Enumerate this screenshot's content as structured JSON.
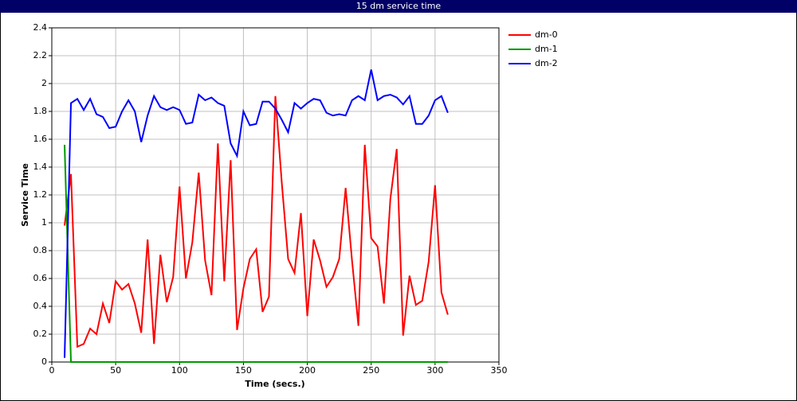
{
  "chart_data": {
    "type": "line",
    "title": "15 dm service time",
    "x_label": "Time (secs.)",
    "y_label": "Service Time",
    "x": [
      10,
      15,
      20,
      25,
      30,
      35,
      40,
      45,
      50,
      55,
      60,
      65,
      70,
      75,
      80,
      85,
      90,
      95,
      100,
      105,
      110,
      115,
      120,
      125,
      130,
      135,
      140,
      145,
      150,
      155,
      160,
      165,
      170,
      175,
      180,
      185,
      190,
      195,
      200,
      205,
      210,
      215,
      220,
      225,
      230,
      235,
      240,
      245,
      250,
      255,
      260,
      265,
      270,
      275,
      280,
      285,
      290,
      295,
      300,
      305,
      310
    ],
    "series": [
      {
        "name": "dm-0",
        "color": "#ff0000",
        "values": [
          0.98,
          1.35,
          0.11,
          0.13,
          0.24,
          0.2,
          0.42,
          0.28,
          0.58,
          0.52,
          0.56,
          0.42,
          0.21,
          0.88,
          0.13,
          0.77,
          0.43,
          0.61,
          1.26,
          0.6,
          0.86,
          1.36,
          0.73,
          0.48,
          1.57,
          0.58,
          1.45,
          0.23,
          0.53,
          0.74,
          0.81,
          0.36,
          0.47,
          1.91,
          1.29,
          0.74,
          0.64,
          1.07,
          0.33,
          0.88,
          0.73,
          0.54,
          0.61,
          0.74,
          1.25,
          0.73,
          0.26,
          1.56,
          0.89,
          0.83,
          0.42,
          1.17,
          1.53,
          0.19,
          0.62,
          0.41,
          0.44,
          0.72,
          1.27,
          0.5,
          0.34
        ]
      },
      {
        "name": "dm-1",
        "color": "#009900",
        "values": [
          1.56,
          0,
          0,
          0,
          0,
          0,
          0,
          0,
          0,
          0,
          0,
          0,
          0,
          0,
          0,
          0,
          0,
          0,
          0,
          0,
          0,
          0,
          0,
          0,
          0,
          0,
          0,
          0,
          0,
          0,
          0,
          0,
          0,
          0,
          0,
          0,
          0,
          0,
          0,
          0,
          0,
          0,
          0,
          0,
          0,
          0,
          0,
          0,
          0,
          0,
          0,
          0,
          0,
          0,
          0,
          0,
          0,
          0,
          0,
          0,
          0
        ]
      },
      {
        "name": "dm-2",
        "color": "#0000ff",
        "values": [
          0.03,
          1.86,
          1.89,
          1.81,
          1.89,
          1.78,
          1.76,
          1.68,
          1.69,
          1.8,
          1.88,
          1.8,
          1.58,
          1.77,
          1.91,
          1.83,
          1.81,
          1.83,
          1.81,
          1.71,
          1.72,
          1.92,
          1.88,
          1.9,
          1.86,
          1.84,
          1.57,
          1.48,
          1.8,
          1.7,
          1.71,
          1.87,
          1.87,
          1.82,
          1.74,
          1.65,
          1.86,
          1.82,
          1.86,
          1.89,
          1.88,
          1.79,
          1.77,
          1.78,
          1.77,
          1.88,
          1.91,
          1.88,
          2.1,
          1.88,
          1.91,
          1.92,
          1.9,
          1.85,
          1.91,
          1.71,
          1.71,
          1.77,
          1.88,
          1.91,
          1.79
        ]
      }
    ],
    "xlim": [
      0,
      350
    ],
    "xticks": [
      0,
      50,
      100,
      150,
      200,
      250,
      300,
      350
    ],
    "ylim": [
      0,
      2.4
    ],
    "yticks": [
      0,
      0.2,
      0.4,
      0.6,
      0.8,
      1,
      1.2,
      1.4,
      1.6,
      1.8,
      2,
      2.2,
      2.4
    ],
    "grid": true,
    "legend": "right"
  }
}
